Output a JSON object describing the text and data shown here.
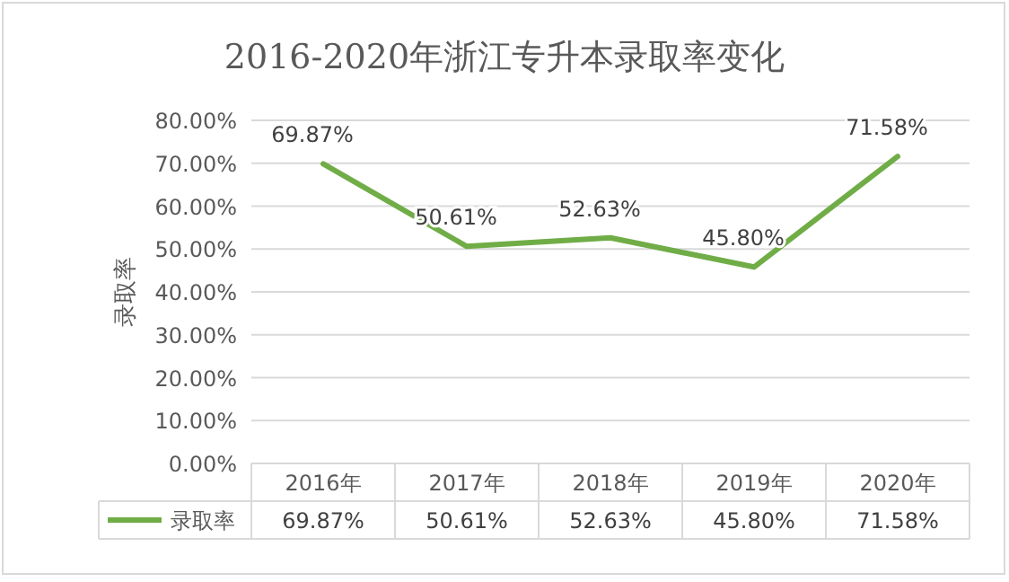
{
  "chart_data": {
    "type": "line",
    "title": "2016-2020年浙江专升本录取率变化",
    "ylabel": "录取率",
    "categories": [
      "2016年",
      "2017年",
      "2018年",
      "2019年",
      "2020年"
    ],
    "series": [
      {
        "name": "录取率",
        "color": "#70ad47",
        "values": [
          69.87,
          50.61,
          52.63,
          45.8,
          71.58
        ],
        "value_labels": [
          "69.87%",
          "50.61%",
          "52.63%",
          "45.80%",
          "71.58%"
        ]
      }
    ],
    "ylim": [
      0,
      80
    ],
    "yticks": [
      {
        "value": 0,
        "label": "0.00%"
      },
      {
        "value": 10,
        "label": "10.00%"
      },
      {
        "value": 20,
        "label": "20.00%"
      },
      {
        "value": 30,
        "label": "30.00%"
      },
      {
        "value": 40,
        "label": "40.00%"
      },
      {
        "value": 50,
        "label": "50.00%"
      },
      {
        "value": 60,
        "label": "60.00%"
      },
      {
        "value": 70,
        "label": "70.00%"
      },
      {
        "value": 80,
        "label": "80.00%"
      }
    ],
    "grid": "y",
    "legend": "bottom",
    "marker": "none",
    "line_style": "solid"
  }
}
